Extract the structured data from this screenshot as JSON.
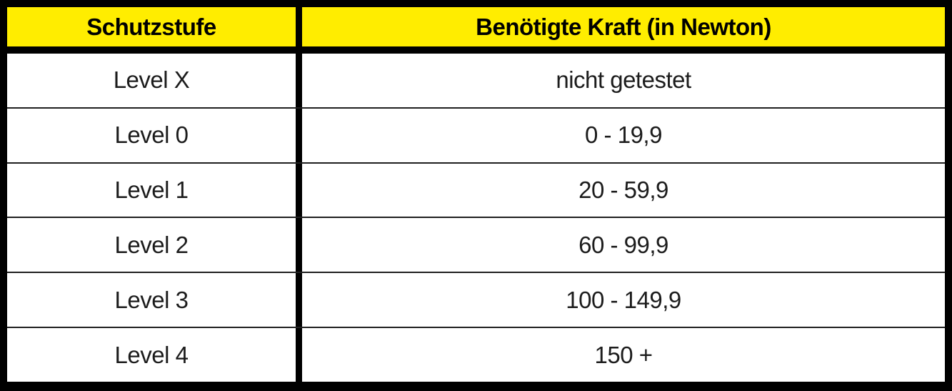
{
  "chart_data": {
    "type": "table",
    "columns": [
      "Schutzstufe",
      "Benötigte Kraft (in Newton)"
    ],
    "rows": [
      [
        "Level X",
        "nicht getestet"
      ],
      [
        "Level 0",
        "0 - 19,9"
      ],
      [
        "Level 1",
        "20 - 59,9"
      ],
      [
        "Level 2",
        "60 - 99,9"
      ],
      [
        "Level 3",
        "100 - 149,9"
      ],
      [
        "Level 4",
        "150 +"
      ]
    ],
    "layout": {
      "header_bg": "#FFED00",
      "header_text_color": "#000000",
      "border_color": "#000000",
      "row_separator_color": "#1f1f1f",
      "body_text_color": "#1c1c1c"
    }
  }
}
